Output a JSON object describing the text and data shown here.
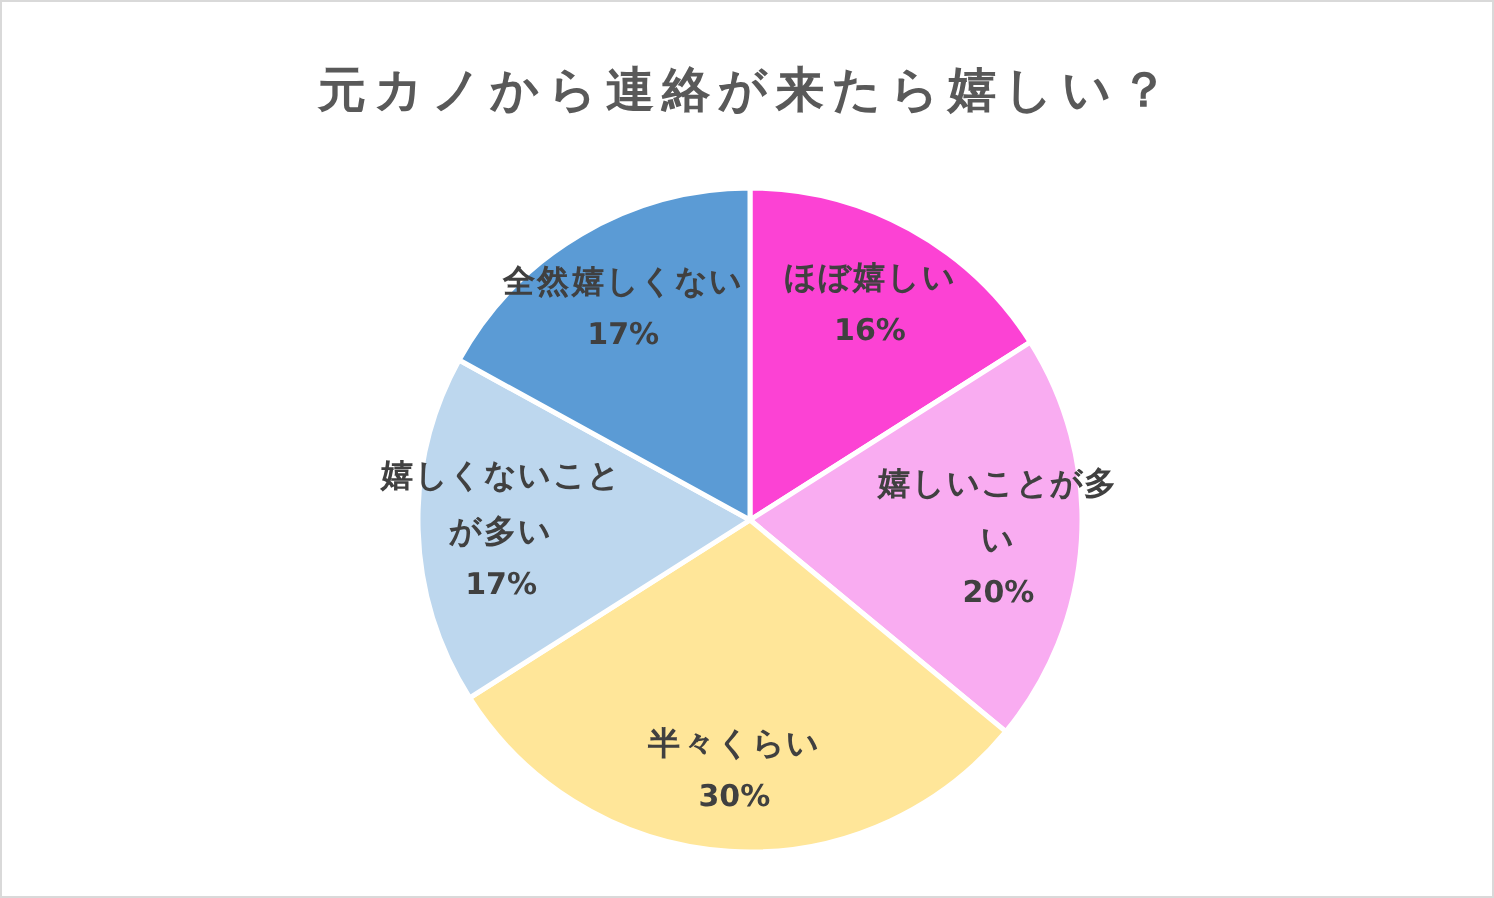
{
  "chart_data": {
    "type": "pie",
    "title": "元カノから連絡が来たら嬉しい？",
    "categories": [
      "ほぼ嬉しい",
      "嬉しいことが多い",
      "半々くらい",
      "嬉しくないことが多い",
      "全然嬉しくない"
    ],
    "values": [
      16,
      20,
      30,
      17,
      17
    ],
    "colors": [
      "#fc42d4",
      "#f9acf1",
      "#ffe699",
      "#bdd7ee",
      "#5b9bd5"
    ],
    "value_labels": [
      "16%",
      "20%",
      "30%",
      "17%",
      "17%"
    ]
  }
}
